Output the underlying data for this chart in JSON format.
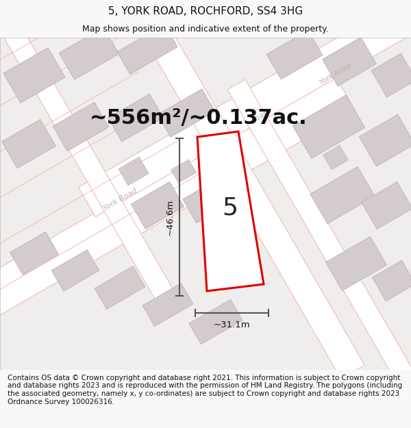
{
  "title": "5, YORK ROAD, ROCHFORD, SS4 3HG",
  "subtitle": "Map shows position and indicative extent of the property.",
  "area_text": "~556m²/~0.137ac.",
  "number_label": "5",
  "dim_vertical": "~46.6m",
  "dim_horizontal": "~31.1m",
  "footer": "Contains OS data © Crown copyright and database right 2021. This information is subject to Crown copyright and database rights 2023 and is reproduced with the permission of HM Land Registry. The polygons (including the associated geometry, namely x, y co-ordinates) are subject to Crown copyright and database rights 2023 Ordnance Survey 100026316.",
  "map_bg": "#f0eeed",
  "road_line_color": "#f5b8b8",
  "building_face": "#d4cccc",
  "building_edge": "#c0b8b8",
  "plot_face": "#ffffff",
  "plot_edge": "#dd0000",
  "road_label_color": "#c0b0b0",
  "dim_line_color": "#555555",
  "title_fontsize": 11,
  "subtitle_fontsize": 9,
  "area_fontsize": 22,
  "dim_fontsize": 9.5,
  "number_fontsize": 26,
  "footer_fontsize": 7.5,
  "fig_bg": "#f8f8f8"
}
